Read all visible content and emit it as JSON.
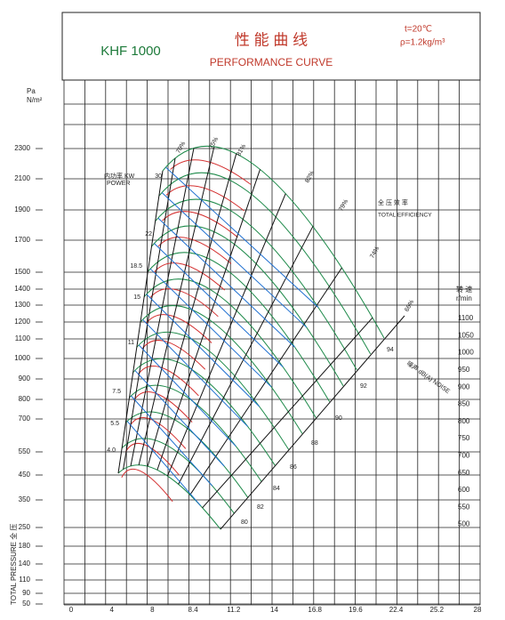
{
  "header": {
    "model": "KHF 1000",
    "title_cn": "性 能 曲 线",
    "title_en": "PERFORMANCE CURVE",
    "temperature": "t=20℃",
    "density": "ρ=1.2kg/m³"
  },
  "axes": {
    "y_unit": [
      "Pa",
      "N/m²"
    ],
    "y_title": "TOTAL PRESSURE 全 压",
    "y_labels": [
      "2300",
      "2100",
      "1900",
      "1700",
      "1500",
      "1400",
      "1300",
      "1200",
      "1100",
      "1000",
      "900",
      "800",
      "700",
      "550",
      "450",
      "350",
      "250",
      "180",
      "140",
      "110",
      "90",
      "50"
    ],
    "y2_title": [
      "转 速",
      "r/min"
    ],
    "y2_labels": [
      "1100",
      "1050",
      "1000",
      "950",
      "900",
      "850",
      "800",
      "750",
      "700",
      "650",
      "600",
      "550",
      "500"
    ],
    "x_labels": [
      "0",
      "4",
      "8",
      "8.4",
      "11.2",
      "14",
      "16.8",
      "19.6",
      "22.4",
      "25.2",
      "28"
    ]
  },
  "curve_labels": {
    "power_title": "内功率 KW",
    "power_title_en": "POWER",
    "power": [
      "30",
      "22",
      "18.5",
      "15",
      "11",
      "7.5",
      "5.5",
      "4.0"
    ],
    "efficiency_title": "全 压 效 率",
    "efficiency_title_en": "TOTAL EFFICIENCY",
    "efficiency": [
      "70%",
      "75%",
      "81%",
      "82%",
      "79%",
      "74%",
      "66%"
    ],
    "noise_title": "噪声 dB(A) NOISE",
    "noise": [
      "94",
      "92",
      "90",
      "88",
      "86",
      "84",
      "82",
      "80"
    ]
  }
}
